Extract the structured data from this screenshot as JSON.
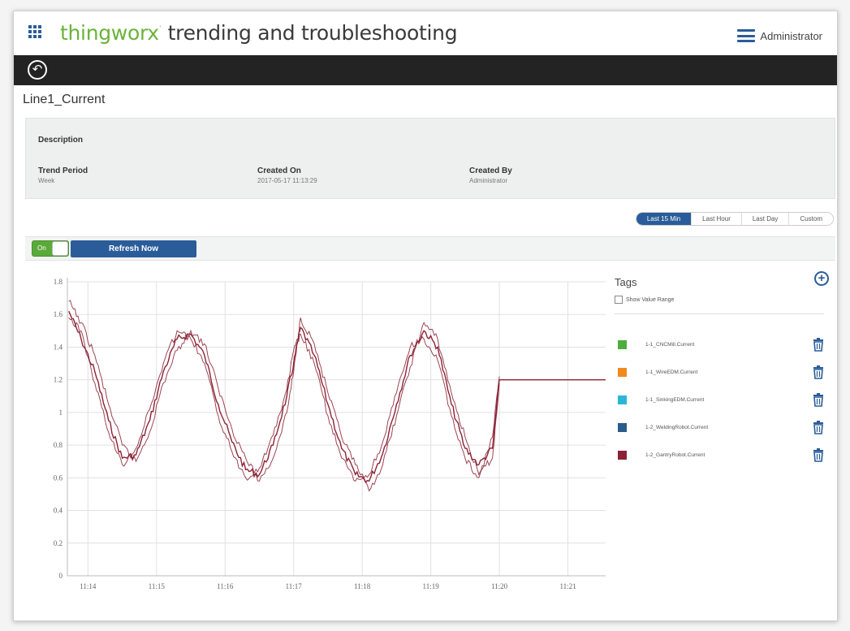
{
  "header": {
    "brand": "thingworx",
    "brand_mark": "·",
    "app_title": "trending and troubleshooting",
    "user": "Administrator",
    "apps_icon": "apps-grid-icon",
    "menu_icon": "hamburger-icon"
  },
  "nav": {
    "back_icon": "back-arrow-icon"
  },
  "page": {
    "title": "Line1_Current"
  },
  "info": {
    "description_label": "Description",
    "trend_period_label": "Trend Period",
    "trend_period_value": "Week",
    "created_on_label": "Created On",
    "created_on_value": "2017-05-17 11:13:29",
    "created_by_label": "Created By",
    "created_by_value": "Administrator"
  },
  "period": {
    "options": [
      "Last 15 Min",
      "Last Hour",
      "Last Day",
      "Custom"
    ],
    "selected": "Last 15 Min"
  },
  "toolbar": {
    "toggle_label": "On",
    "toggle_state": true,
    "refresh_label": "Refresh Now"
  },
  "tags": {
    "title": "Tags",
    "show_range_label": "Show Value Range",
    "show_range_checked": false,
    "items": [
      {
        "name": "1-1_CNCMill.Current",
        "color": "#4caf3c"
      },
      {
        "name": "1-1_WireEDM.Current",
        "color": "#f08a1c"
      },
      {
        "name": "1-1_SinkingEDM.Current",
        "color": "#2bb6d6"
      },
      {
        "name": "1-2_WeldingRobot.Current",
        "color": "#2a5c8a"
      },
      {
        "name": "1-2_GantryRobot.Current",
        "color": "#8b2335"
      }
    ]
  },
  "colors": {
    "accent": "#2a5c9a",
    "brand_green": "#6bb33a",
    "navbar": "#232323"
  },
  "chart_data": {
    "type": "line",
    "x_ticks": [
      "11:14",
      "11:15",
      "11:16",
      "11:17",
      "11:18",
      "11:19",
      "11:20",
      "11:21"
    ],
    "y_ticks": [
      0,
      0.2,
      0.4,
      0.6,
      0.8,
      1,
      1.2,
      1.4,
      1.6,
      1.8
    ],
    "ylim": [
      0,
      1.8
    ],
    "x_start_min": 13.7,
    "x_end_min": 21.55,
    "grid": true,
    "series_color": "#8b2335",
    "series": [
      {
        "x": [
          13.72,
          13.9,
          14.1,
          14.3,
          14.5,
          14.7,
          14.9,
          15.1,
          15.3,
          15.5,
          15.7,
          15.9,
          16.1,
          16.3,
          16.5,
          16.7,
          16.9,
          17.0,
          17.1,
          17.3,
          17.5,
          17.7,
          17.9,
          18.1,
          18.3,
          18.5,
          18.7,
          18.9,
          19.1,
          19.3,
          19.5,
          19.7,
          19.9,
          20.0,
          21.55
        ],
        "y": [
          1.62,
          1.45,
          1.25,
          0.95,
          0.72,
          0.74,
          0.95,
          1.25,
          1.45,
          1.48,
          1.35,
          1.05,
          0.82,
          0.65,
          0.62,
          0.8,
          1.1,
          1.3,
          1.52,
          1.35,
          1.05,
          0.78,
          0.62,
          0.58,
          0.75,
          1.05,
          1.35,
          1.5,
          1.4,
          1.05,
          0.78,
          0.68,
          0.78,
          1.2,
          1.2
        ]
      },
      {
        "x": [
          13.72,
          13.9,
          14.1,
          14.3,
          14.5,
          14.7,
          14.9,
          15.1,
          15.3,
          15.5,
          15.7,
          15.9,
          16.1,
          16.3,
          16.5,
          16.7,
          16.9,
          17.0,
          17.1,
          17.3,
          17.5,
          17.7,
          17.9,
          18.1,
          18.3,
          18.5,
          18.7,
          18.9,
          19.1,
          19.3,
          19.5,
          19.7,
          19.9,
          20.0
        ],
        "y": [
          1.68,
          1.55,
          1.35,
          1.05,
          0.8,
          0.7,
          0.88,
          1.18,
          1.38,
          1.5,
          1.42,
          1.15,
          0.9,
          0.72,
          0.58,
          0.72,
          1.0,
          1.25,
          1.58,
          1.42,
          1.12,
          0.85,
          0.68,
          0.52,
          0.68,
          0.98,
          1.28,
          1.55,
          1.45,
          1.12,
          0.85,
          0.62,
          0.72,
          1.18
        ]
      },
      {
        "x": [
          13.72,
          13.9,
          14.1,
          14.3,
          14.5,
          14.7,
          14.9,
          15.1,
          15.3,
          15.5,
          15.7,
          15.9,
          16.1,
          16.3,
          16.5,
          16.7,
          16.9,
          17.0,
          17.1,
          17.3,
          17.5,
          17.7,
          17.9,
          18.1,
          18.3,
          18.5,
          18.7,
          18.9,
          19.1,
          19.3,
          19.5,
          19.7,
          19.9,
          20.0
        ],
        "y": [
          1.58,
          1.5,
          1.18,
          0.88,
          0.68,
          0.78,
          1.02,
          1.3,
          1.5,
          1.45,
          1.3,
          0.98,
          0.76,
          0.6,
          0.66,
          0.86,
          1.14,
          1.38,
          1.48,
          1.3,
          0.98,
          0.72,
          0.58,
          0.62,
          0.82,
          1.12,
          1.4,
          1.45,
          1.32,
          0.98,
          0.72,
          0.6,
          0.85,
          1.22
        ]
      }
    ]
  }
}
